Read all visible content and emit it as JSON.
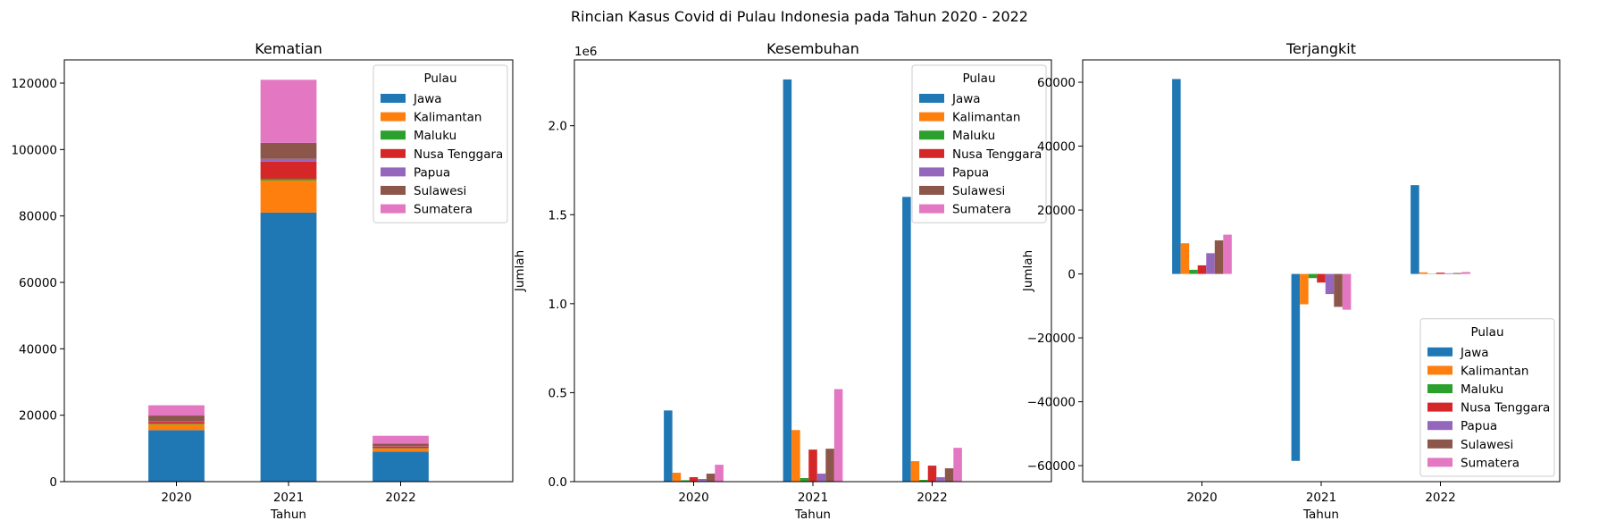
{
  "figure": {
    "title": "Rincian Kasus Covid di Pulau Indonesia pada Tahun 2020 - 2022"
  },
  "colors": [
    "#1f77b4",
    "#ff7f0e",
    "#2ca02c",
    "#d62728",
    "#9467bd",
    "#8c564b",
    "#e377c2"
  ],
  "chart_data": [
    {
      "type": "bar",
      "stacked": true,
      "title": "Kematian",
      "xlabel": "Tahun",
      "ylabel": "",
      "ylim": [
        0,
        127000
      ],
      "yticks": [
        0,
        20000,
        40000,
        60000,
        80000,
        100000,
        120000
      ],
      "ytick_labels": [
        "0",
        "20000",
        "40000",
        "60000",
        "80000",
        "100000",
        "120000"
      ],
      "offset_text": "",
      "categories": [
        "2020",
        "2021",
        "2022"
      ],
      "legend": {
        "title": "Pulau",
        "position": "upper-right"
      },
      "series": [
        {
          "name": "Jawa",
          "values": [
            15500,
            81000,
            9000
          ]
        },
        {
          "name": "Kalimantan",
          "values": [
            1800,
            9700,
            1000
          ]
        },
        {
          "name": "Maluku",
          "values": [
            200,
            500,
            100
          ]
        },
        {
          "name": "Nusa Tenggara",
          "values": [
            500,
            5200,
            500
          ]
        },
        {
          "name": "Papua",
          "values": [
            300,
            800,
            100
          ]
        },
        {
          "name": "Sulawesi",
          "values": [
            1600,
            4800,
            800
          ]
        },
        {
          "name": "Sumatera",
          "values": [
            3100,
            19000,
            2300
          ]
        }
      ]
    },
    {
      "type": "bar",
      "stacked": false,
      "title": "Kesembuhan",
      "xlabel": "Tahun",
      "ylabel": "Jumlah",
      "ylim": [
        0,
        2370000
      ],
      "yticks": [
        0,
        500000,
        1000000,
        1500000,
        2000000
      ],
      "ytick_labels": [
        "0.0",
        "0.5",
        "1.0",
        "1.5",
        "2.0"
      ],
      "offset_text": "1e6",
      "categories": [
        "2020",
        "2021",
        "2022"
      ],
      "legend": {
        "title": "Pulau",
        "position": "upper-right"
      },
      "series": [
        {
          "name": "Jawa",
          "values": [
            400000,
            2260000,
            1600000
          ]
        },
        {
          "name": "Kalimantan",
          "values": [
            50000,
            290000,
            115000
          ]
        },
        {
          "name": "Maluku",
          "values": [
            8000,
            20000,
            10000
          ]
        },
        {
          "name": "Nusa Tenggara",
          "values": [
            25000,
            180000,
            90000
          ]
        },
        {
          "name": "Papua",
          "values": [
            15000,
            45000,
            25000
          ]
        },
        {
          "name": "Sulawesi",
          "values": [
            45000,
            185000,
            75000
          ]
        },
        {
          "name": "Sumatera",
          "values": [
            95000,
            520000,
            190000
          ]
        }
      ]
    },
    {
      "type": "bar",
      "stacked": false,
      "title": "Terjangkit",
      "xlabel": "Tahun",
      "ylabel": "Jumlah",
      "ylim": [
        -65000,
        67000
      ],
      "yticks": [
        -60000,
        -40000,
        -20000,
        0,
        20000,
        40000,
        60000
      ],
      "ytick_labels": [
        "−60000",
        "−40000",
        "−20000",
        "0",
        "20000",
        "40000",
        "60000"
      ],
      "offset_text": "",
      "categories": [
        "2020",
        "2021",
        "2022"
      ],
      "legend": {
        "title": "Pulau",
        "position": "lower-right"
      },
      "series": [
        {
          "name": "Jawa",
          "values": [
            61000,
            -58500,
            27800
          ]
        },
        {
          "name": "Kalimantan",
          "values": [
            9600,
            -9500,
            500
          ]
        },
        {
          "name": "Maluku",
          "values": [
            1300,
            -1300,
            100
          ]
        },
        {
          "name": "Nusa Tenggara",
          "values": [
            2700,
            -2700,
            400
          ]
        },
        {
          "name": "Papua",
          "values": [
            6500,
            -6300,
            200
          ]
        },
        {
          "name": "Sulawesi",
          "values": [
            10500,
            -10300,
            300
          ]
        },
        {
          "name": "Sumatera",
          "values": [
            12300,
            -11200,
            600
          ]
        }
      ]
    }
  ]
}
